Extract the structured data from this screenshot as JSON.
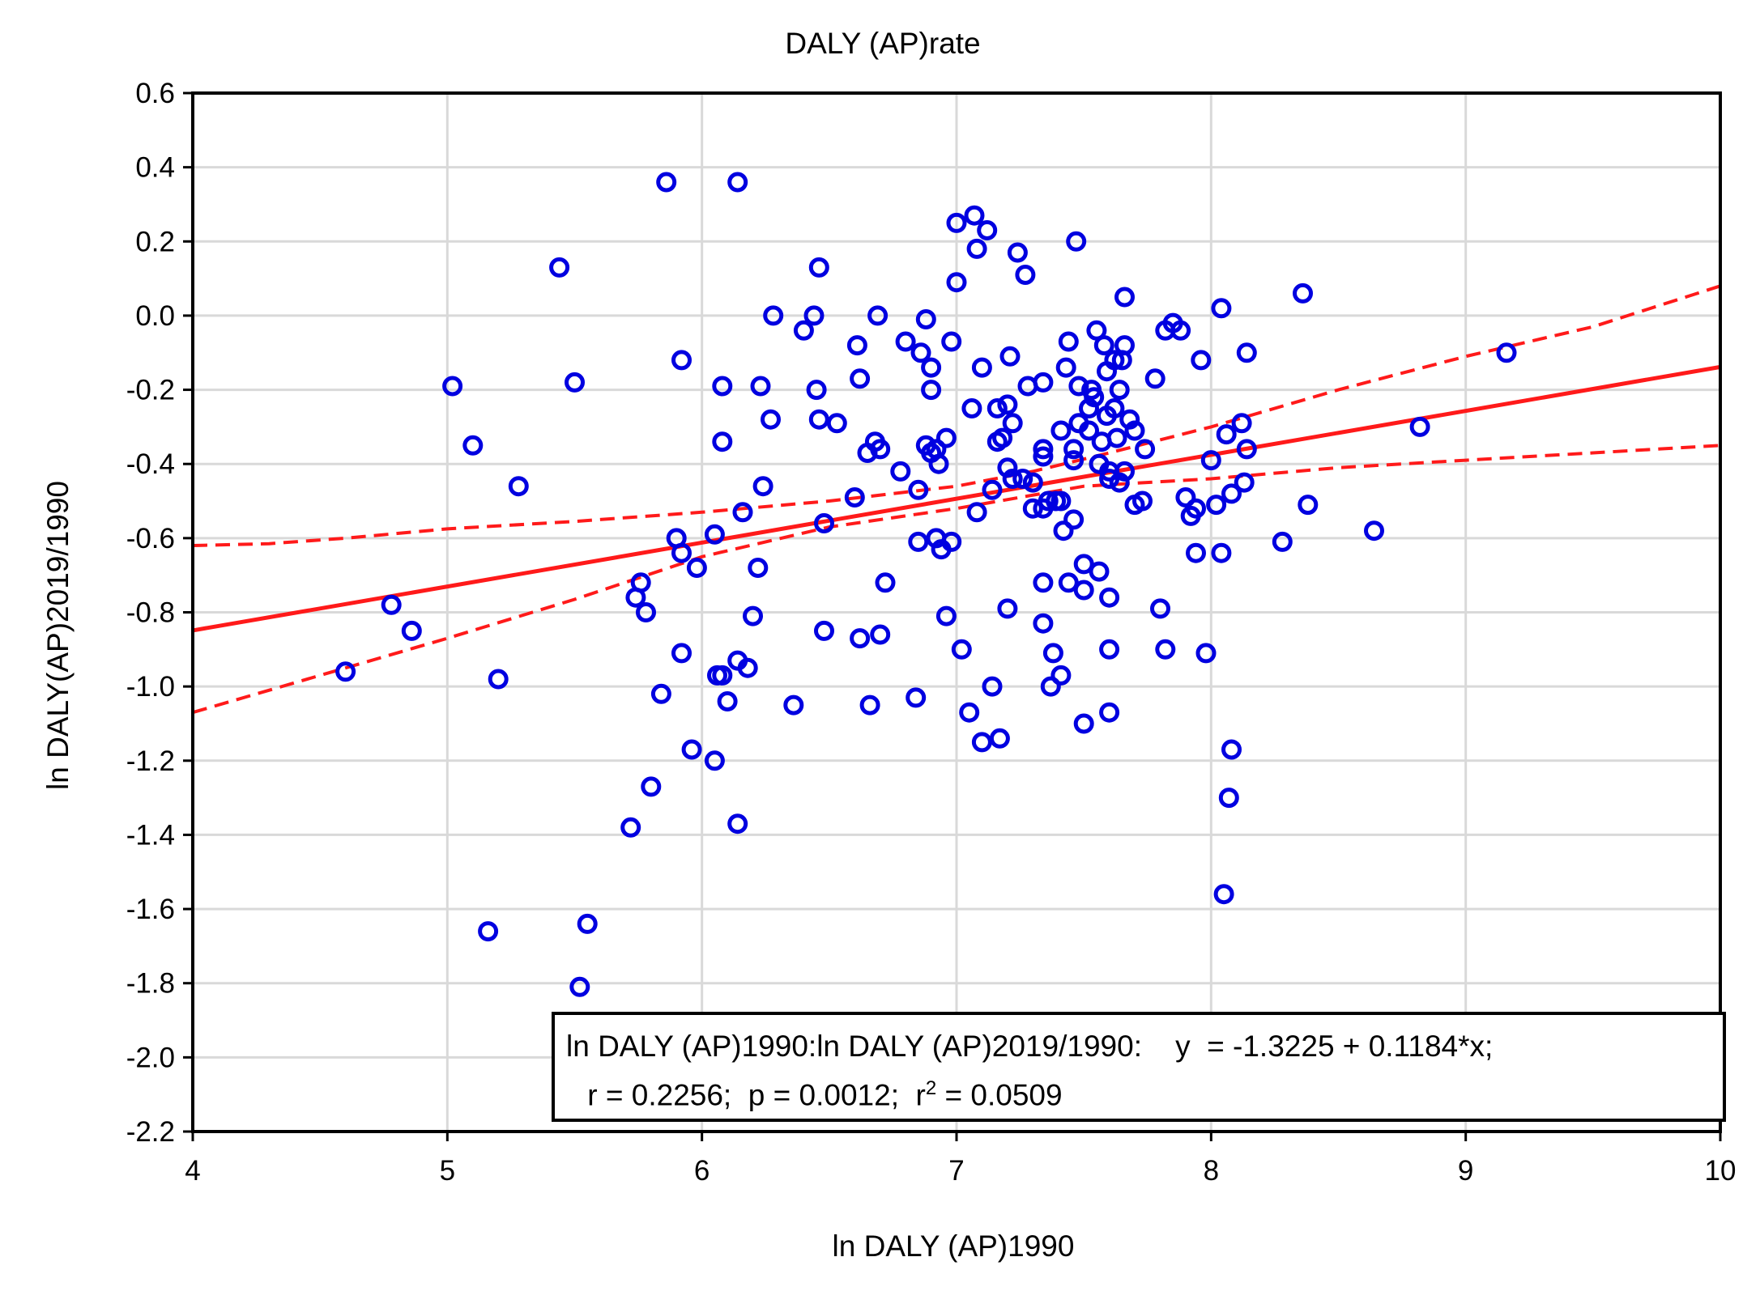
{
  "chart_data": {
    "type": "scatter",
    "title": "DALY (AP)rate",
    "xlabel": "ln DALY (AP)1990",
    "ylabel": "ln DALY(AP)2019/1990",
    "xlim": [
      4,
      10
    ],
    "ylim": [
      -2.2,
      0.6
    ],
    "xticks": [
      4,
      5,
      6,
      7,
      8,
      9,
      10
    ],
    "yticks": [
      0.6,
      0.4,
      0.2,
      0.0,
      -0.2,
      -0.4,
      -0.6,
      -0.8,
      -1.0,
      -1.2,
      -1.4,
      -1.6,
      -1.8,
      -2.0,
      -2.2
    ],
    "x_tick_labels": [
      "4",
      "5",
      "6",
      "7",
      "8",
      "9",
      "10"
    ],
    "y_tick_labels": [
      "0.6",
      "0.4",
      "0.2",
      "0.0",
      "-0.2",
      "-0.4",
      "-0.6",
      "-0.8",
      "-1.0",
      "-1.2",
      "-1.4",
      "-1.6",
      "-1.8",
      "-2.0",
      "-2.2"
    ],
    "grid": true,
    "colors": {
      "points": "#0000e0",
      "fit": "#ff1a1a",
      "grid": "#d9d9d9",
      "frame": "#000000"
    },
    "points": [
      [
        4.6,
        -0.96
      ],
      [
        4.78,
        -0.78
      ],
      [
        4.86,
        -0.85
      ],
      [
        5.02,
        -0.19
      ],
      [
        5.1,
        -0.35
      ],
      [
        5.16,
        -1.66
      ],
      [
        5.2,
        -0.98
      ],
      [
        5.28,
        -0.46
      ],
      [
        5.44,
        0.13
      ],
      [
        5.5,
        -0.18
      ],
      [
        5.52,
        -1.81
      ],
      [
        5.55,
        -1.64
      ],
      [
        5.72,
        -1.38
      ],
      [
        5.74,
        -0.76
      ],
      [
        5.76,
        -0.72
      ],
      [
        5.78,
        -0.8
      ],
      [
        5.8,
        -1.27
      ],
      [
        5.84,
        -1.02
      ],
      [
        5.86,
        0.36
      ],
      [
        5.9,
        -0.6
      ],
      [
        5.92,
        -0.64
      ],
      [
        5.92,
        -0.91
      ],
      [
        5.92,
        -0.12
      ],
      [
        5.96,
        -1.17
      ],
      [
        5.98,
        -0.68
      ],
      [
        6.05,
        -0.59
      ],
      [
        6.05,
        -1.2
      ],
      [
        6.06,
        -0.97
      ],
      [
        6.08,
        -0.97
      ],
      [
        6.08,
        -0.19
      ],
      [
        6.08,
        -0.34
      ],
      [
        6.1,
        -1.04
      ],
      [
        6.14,
        0.36
      ],
      [
        6.14,
        -0.93
      ],
      [
        6.14,
        -1.37
      ],
      [
        6.16,
        -0.53
      ],
      [
        6.18,
        -0.95
      ],
      [
        6.2,
        -0.81
      ],
      [
        6.22,
        -0.68
      ],
      [
        6.23,
        -0.19
      ],
      [
        6.24,
        -0.46
      ],
      [
        6.27,
        -0.28
      ],
      [
        6.28,
        0.0
      ],
      [
        6.36,
        -1.05
      ],
      [
        6.4,
        -0.04
      ],
      [
        6.44,
        0.0
      ],
      [
        6.45,
        -0.2
      ],
      [
        6.46,
        0.13
      ],
      [
        6.46,
        -0.28
      ],
      [
        6.48,
        -0.56
      ],
      [
        6.48,
        -0.85
      ],
      [
        6.53,
        -0.29
      ],
      [
        6.6,
        -0.49
      ],
      [
        6.61,
        -0.08
      ],
      [
        6.62,
        -0.17
      ],
      [
        6.62,
        -0.87
      ],
      [
        6.65,
        -0.37
      ],
      [
        6.66,
        -1.05
      ],
      [
        6.68,
        -0.34
      ],
      [
        6.69,
        0.0
      ],
      [
        6.7,
        -0.36
      ],
      [
        6.7,
        -0.86
      ],
      [
        6.72,
        -0.72
      ],
      [
        6.78,
        -0.42
      ],
      [
        6.8,
        -0.07
      ],
      [
        6.84,
        -1.03
      ],
      [
        6.85,
        -0.47
      ],
      [
        6.85,
        -0.61
      ],
      [
        6.86,
        -0.1
      ],
      [
        6.88,
        -0.35
      ],
      [
        6.88,
        -0.01
      ],
      [
        6.9,
        -0.14
      ],
      [
        6.9,
        -0.2
      ],
      [
        6.9,
        -0.37
      ],
      [
        6.92,
        -0.36
      ],
      [
        6.92,
        -0.6
      ],
      [
        6.93,
        -0.4
      ],
      [
        6.94,
        -0.63
      ],
      [
        6.96,
        -0.81
      ],
      [
        6.96,
        -0.33
      ],
      [
        6.98,
        -0.07
      ],
      [
        6.98,
        -0.61
      ],
      [
        7.0,
        0.09
      ],
      [
        7.0,
        0.25
      ],
      [
        7.02,
        -0.9
      ],
      [
        7.05,
        -1.07
      ],
      [
        7.06,
        -0.25
      ],
      [
        7.07,
        0.27
      ],
      [
        7.08,
        0.18
      ],
      [
        7.08,
        -0.53
      ],
      [
        7.1,
        -1.15
      ],
      [
        7.1,
        -0.14
      ],
      [
        7.12,
        0.23
      ],
      [
        7.14,
        -0.47
      ],
      [
        7.14,
        -1.0
      ],
      [
        7.16,
        -0.25
      ],
      [
        7.16,
        -0.34
      ],
      [
        7.17,
        -1.14
      ],
      [
        7.18,
        -0.33
      ],
      [
        7.2,
        -0.41
      ],
      [
        7.2,
        -0.79
      ],
      [
        7.2,
        -0.24
      ],
      [
        7.21,
        -0.11
      ],
      [
        7.22,
        -0.29
      ],
      [
        7.22,
        -0.44
      ],
      [
        7.24,
        0.17
      ],
      [
        7.26,
        -0.44
      ],
      [
        7.27,
        0.11
      ],
      [
        7.28,
        -0.19
      ],
      [
        7.3,
        -0.45
      ],
      [
        7.3,
        -0.52
      ],
      [
        7.34,
        -0.52
      ],
      [
        7.34,
        -0.18
      ],
      [
        7.34,
        -0.72
      ],
      [
        7.34,
        -0.38
      ],
      [
        7.34,
        -0.36
      ],
      [
        7.34,
        -0.83
      ],
      [
        7.36,
        -0.5
      ],
      [
        7.37,
        -1.0
      ],
      [
        7.38,
        -0.91
      ],
      [
        7.39,
        -0.5
      ],
      [
        7.41,
        -0.97
      ],
      [
        7.41,
        -0.5
      ],
      [
        7.41,
        -0.31
      ],
      [
        7.42,
        -0.58
      ],
      [
        7.43,
        -0.14
      ],
      [
        7.44,
        -0.72
      ],
      [
        7.44,
        -0.07
      ],
      [
        7.46,
        -0.55
      ],
      [
        7.46,
        -0.39
      ],
      [
        7.46,
        -0.36
      ],
      [
        7.47,
        0.2
      ],
      [
        7.48,
        -0.29
      ],
      [
        7.48,
        -0.19
      ],
      [
        7.5,
        -1.1
      ],
      [
        7.5,
        -0.67
      ],
      [
        7.5,
        -0.74
      ],
      [
        7.52,
        -0.25
      ],
      [
        7.52,
        -0.31
      ],
      [
        7.53,
        -0.2
      ],
      [
        7.54,
        -0.22
      ],
      [
        7.55,
        -0.04
      ],
      [
        7.56,
        -0.69
      ],
      [
        7.56,
        -0.4
      ],
      [
        7.57,
        -0.34
      ],
      [
        7.58,
        -0.08
      ],
      [
        7.59,
        -0.27
      ],
      [
        7.59,
        -0.15
      ],
      [
        7.6,
        -0.42
      ],
      [
        7.6,
        -0.76
      ],
      [
        7.6,
        -0.44
      ],
      [
        7.6,
        -0.9
      ],
      [
        7.6,
        -1.07
      ],
      [
        7.62,
        -0.25
      ],
      [
        7.62,
        -0.12
      ],
      [
        7.63,
        -0.33
      ],
      [
        7.64,
        -0.45
      ],
      [
        7.64,
        -0.2
      ],
      [
        7.65,
        -0.12
      ],
      [
        7.66,
        0.05
      ],
      [
        7.66,
        -0.08
      ],
      [
        7.66,
        -0.42
      ],
      [
        7.68,
        -0.28
      ],
      [
        7.7,
        -0.51
      ],
      [
        7.7,
        -0.31
      ],
      [
        7.73,
        -0.5
      ],
      [
        7.74,
        -0.36
      ],
      [
        7.78,
        -0.17
      ],
      [
        7.8,
        -0.79
      ],
      [
        7.82,
        -0.9
      ],
      [
        7.82,
        -0.04
      ],
      [
        7.85,
        -0.02
      ],
      [
        7.88,
        -0.04
      ],
      [
        7.9,
        -0.49
      ],
      [
        7.92,
        -0.54
      ],
      [
        7.94,
        -0.64
      ],
      [
        7.94,
        -0.52
      ],
      [
        7.96,
        -0.12
      ],
      [
        7.98,
        -0.91
      ],
      [
        8.0,
        -0.39
      ],
      [
        8.02,
        -0.51
      ],
      [
        8.04,
        -0.64
      ],
      [
        8.04,
        0.02
      ],
      [
        8.05,
        -1.56
      ],
      [
        8.06,
        -0.32
      ],
      [
        8.07,
        -1.3
      ],
      [
        8.08,
        -0.48
      ],
      [
        8.08,
        -1.17
      ],
      [
        8.12,
        -0.29
      ],
      [
        8.13,
        -0.45
      ],
      [
        8.14,
        -0.1
      ],
      [
        8.14,
        -0.36
      ],
      [
        8.28,
        -0.61
      ],
      [
        8.36,
        0.06
      ],
      [
        8.38,
        -0.51
      ],
      [
        8.64,
        -0.58
      ],
      [
        8.82,
        -0.3
      ],
      [
        9.16,
        -0.1
      ]
    ],
    "regression": {
      "intercept": -1.3225,
      "slope": 0.1184
    },
    "confidence_band_upper": [
      [
        4,
        -0.62
      ],
      [
        4.3,
        -0.615
      ],
      [
        4.6,
        -0.6
      ],
      [
        5.0,
        -0.575
      ],
      [
        5.5,
        -0.555
      ],
      [
        6.0,
        -0.53
      ],
      [
        6.5,
        -0.5
      ],
      [
        7.0,
        -0.46
      ],
      [
        7.3,
        -0.42
      ],
      [
        7.6,
        -0.37
      ],
      [
        8.0,
        -0.3
      ],
      [
        8.5,
        -0.2
      ],
      [
        9.0,
        -0.11
      ],
      [
        9.5,
        -0.03
      ],
      [
        10,
        0.08
      ]
    ],
    "confidence_band_lower": [
      [
        4,
        -1.07
      ],
      [
        4.5,
        -0.97
      ],
      [
        5.0,
        -0.87
      ],
      [
        5.5,
        -0.765
      ],
      [
        6.0,
        -0.65
      ],
      [
        6.5,
        -0.57
      ],
      [
        7.0,
        -0.52
      ],
      [
        7.5,
        -0.46
      ],
      [
        8.0,
        -0.44
      ],
      [
        8.5,
        -0.41
      ],
      [
        9.0,
        -0.39
      ],
      [
        9.5,
        -0.37
      ],
      [
        10,
        -0.35
      ]
    ],
    "annotation": {
      "line1": "ln DALY (AP)1990:ln DALY (AP)2019/1990:    y  = -1.3225 + 0.1184*x;",
      "line2_prefix": " r = 0.2256;  p = 0.0012;  r",
      "line2_sup": "2",
      "line2_suffix": " = 0.0509",
      "placement": "bottom-right"
    }
  }
}
